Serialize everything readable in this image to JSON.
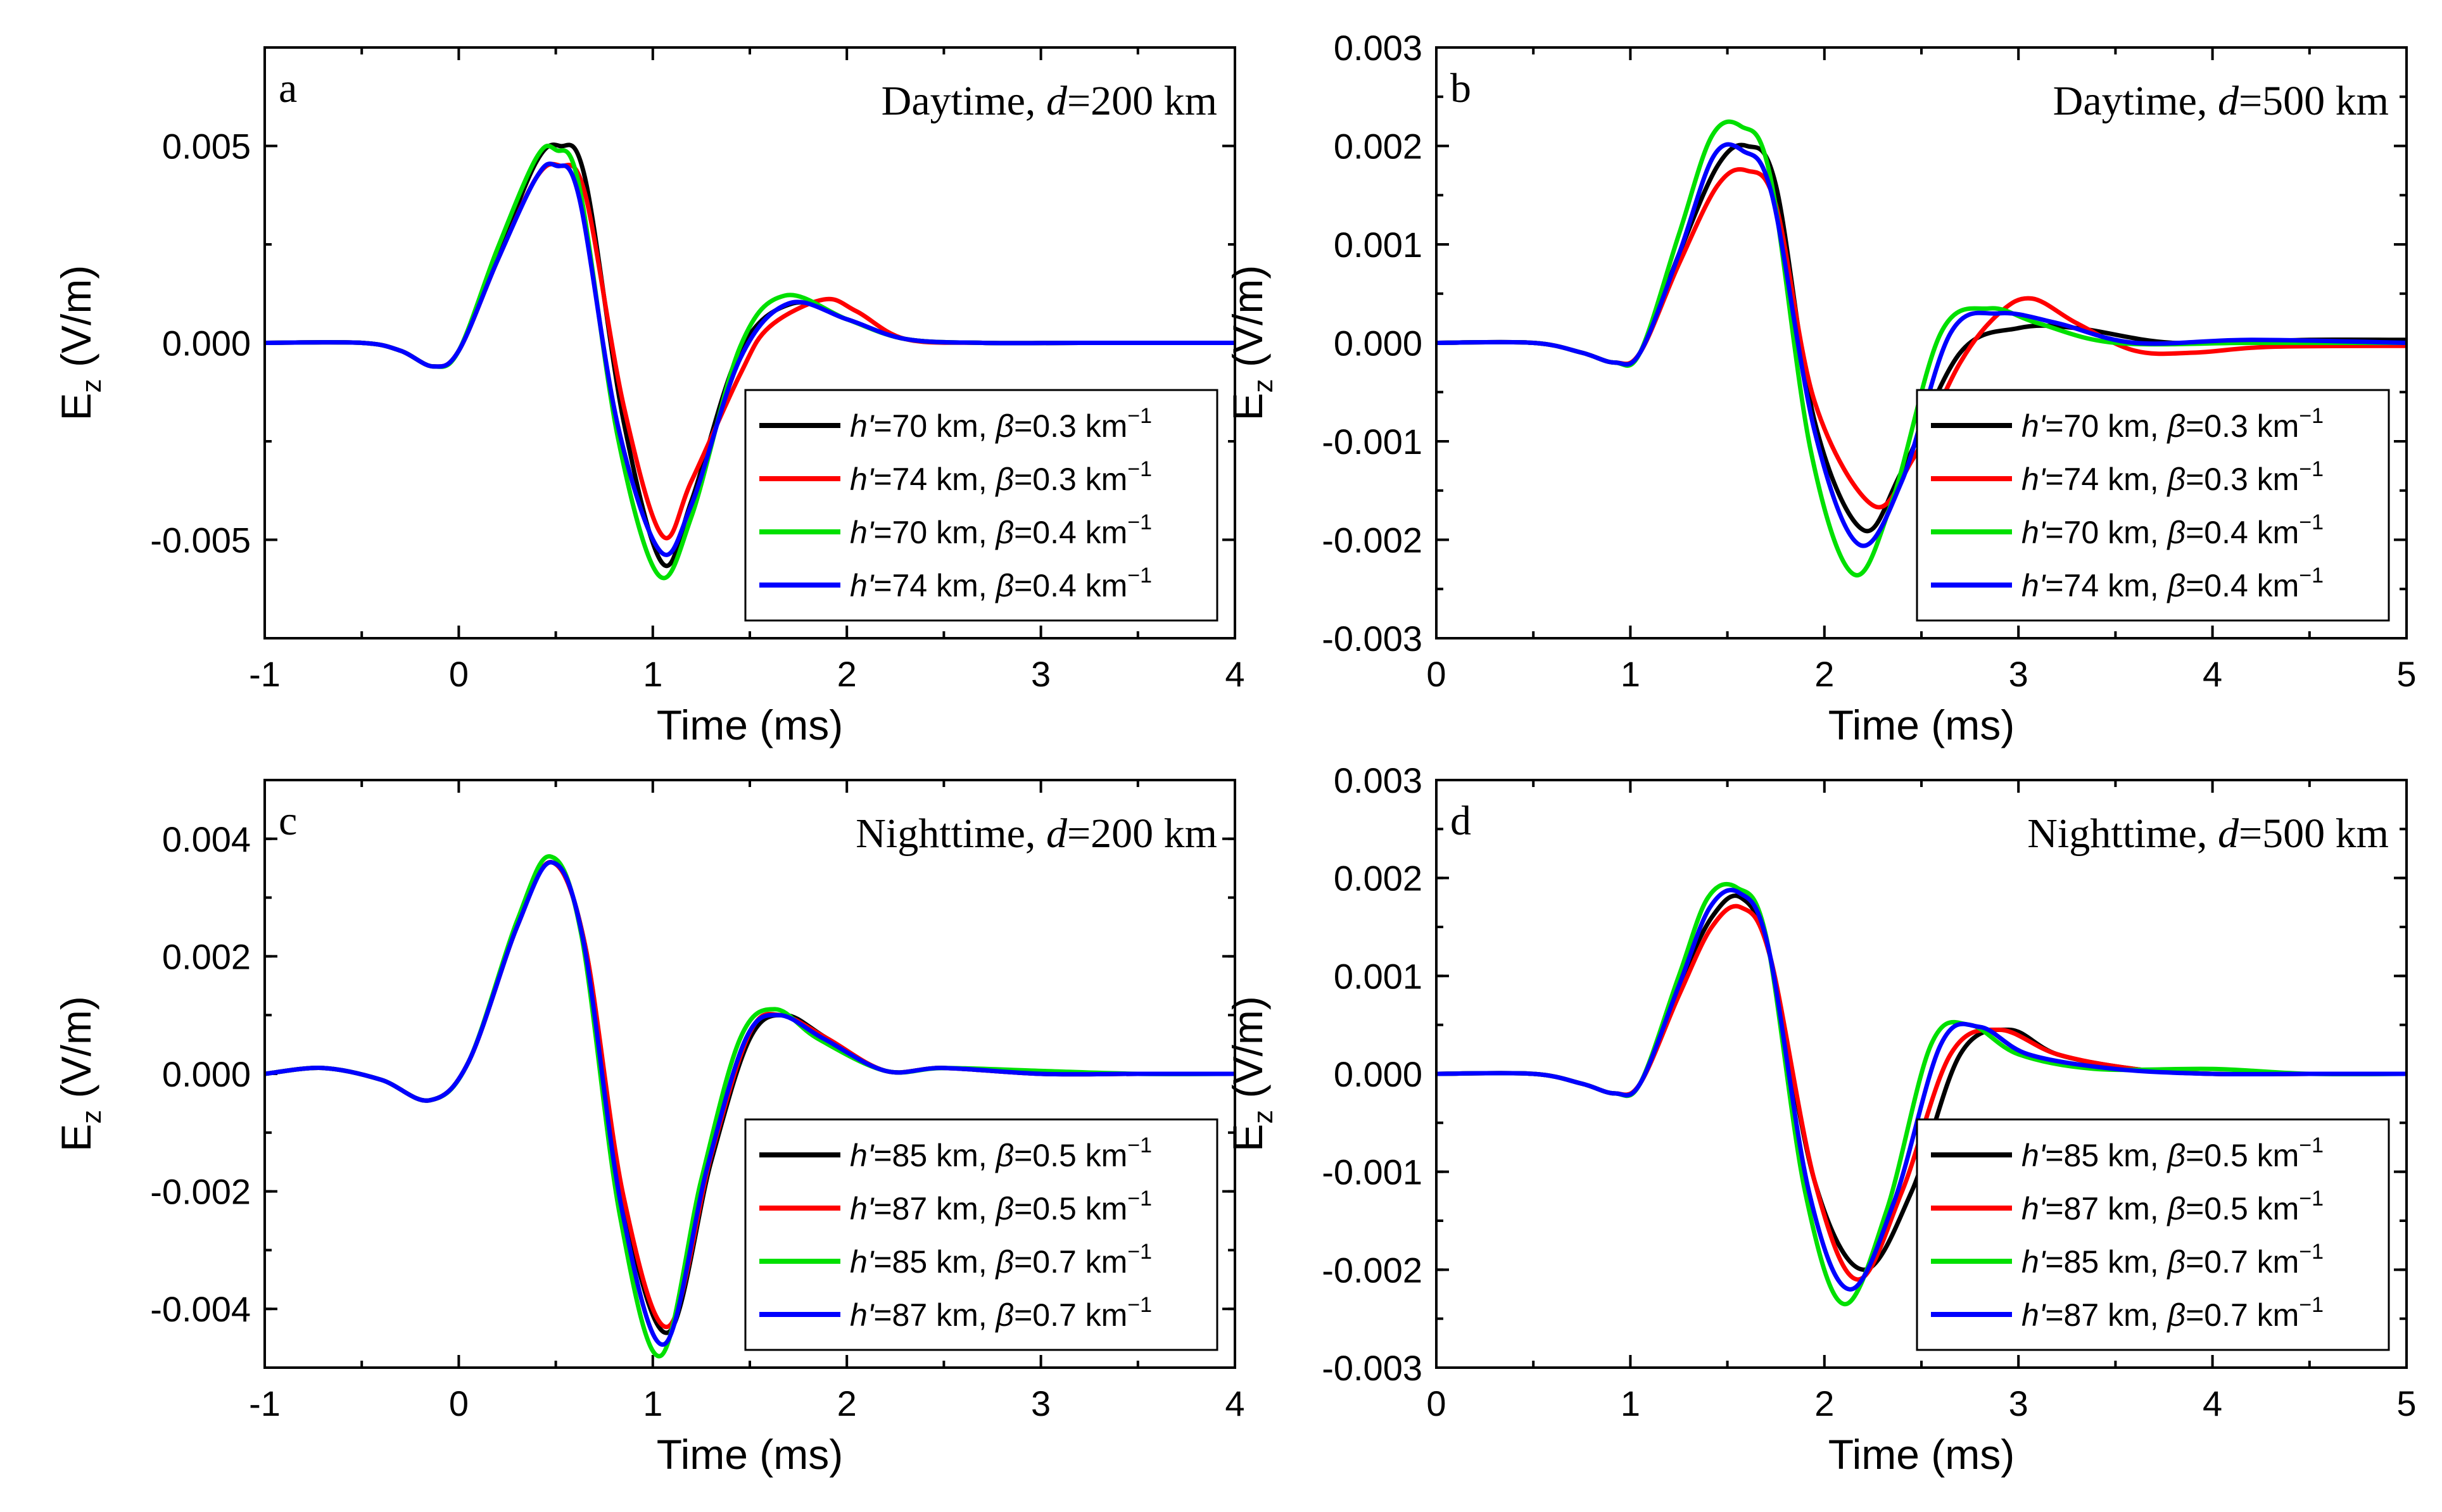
{
  "figure": {
    "series_colors": [
      "#000000",
      "#ff0000",
      "#00e000",
      "#0000ff"
    ]
  },
  "chart_data": [
    {
      "type": "line",
      "panel": "a",
      "title_prefix": "Daytime, ",
      "title_var": "d",
      "title_suffix": "=200 km",
      "xlabel": "Time (ms)",
      "ylabel": "E",
      "ylabel_sub": "z",
      "ylabel_unit": " (V/m)",
      "xlim": [
        -1,
        4
      ],
      "ylim": [
        -0.0075,
        0.0075
      ],
      "xticks": [
        -1,
        0,
        1,
        2,
        3,
        4
      ],
      "xtick_labels": [
        "-1",
        "0",
        "1",
        "2",
        "3",
        "4"
      ],
      "yticks": [
        -0.005,
        0,
        0.005
      ],
      "ytick_labels": [
        "-0.005",
        "0.000",
        "0.005"
      ],
      "legend_position": "lower-right",
      "series": [
        {
          "name_var": "h'",
          "name_mid": "=70 km, ",
          "name_var2": "β",
          "name_tail": "=0.3 km",
          "name_sup": "−1",
          "color": "#000000",
          "x": [
            -1,
            -0.5,
            -0.3,
            -0.13,
            0,
            0.2,
            0.4,
            0.52,
            0.65,
            0.85,
            1.05,
            1.2,
            1.45,
            1.72,
            2.0,
            2.3,
            2.7,
            3.2,
            4
          ],
          "y": [
            0,
            0,
            -0.0002,
            -0.0006,
            -0.0002,
            0.0022,
            0.0046,
            0.005,
            0.0042,
            -0.002,
            -0.0056,
            -0.004,
            -0.0002,
            0.001,
            0.0006,
            0.0001,
            0,
            0,
            0
          ]
        },
        {
          "name_var": "h'",
          "name_mid": "=74 km, ",
          "name_var2": "β",
          "name_tail": "=0.3 km",
          "name_sup": "−1",
          "color": "#ff0000",
          "x": [
            -1,
            -0.5,
            -0.3,
            -0.13,
            0,
            0.2,
            0.4,
            0.52,
            0.65,
            0.85,
            1.05,
            1.2,
            1.45,
            1.6,
            1.88,
            2.05,
            2.3,
            2.7,
            3.2,
            4
          ],
          "y": [
            0,
            0,
            -0.0002,
            -0.0006,
            -0.0002,
            0.0021,
            0.0042,
            0.0045,
            0.0038,
            -0.0016,
            -0.0049,
            -0.0035,
            -0.0008,
            0.0004,
            0.0011,
            0.0008,
            0.0001,
            0,
            0,
            0
          ]
        },
        {
          "name_var": "h'",
          "name_mid": "=70 km, ",
          "name_var2": "β",
          "name_tail": "=0.4 km",
          "name_sup": "−1",
          "color": "#00e000",
          "x": [
            -1,
            -0.5,
            -0.3,
            -0.13,
            0,
            0.2,
            0.4,
            0.5,
            0.62,
            0.82,
            1.03,
            1.2,
            1.45,
            1.68,
            2.0,
            2.3,
            2.7,
            3.2,
            4
          ],
          "y": [
            0,
            0,
            -0.0002,
            -0.0006,
            -0.0002,
            0.0024,
            0.0047,
            0.0049,
            0.004,
            -0.0024,
            -0.0059,
            -0.0044,
            -0.0001,
            0.0012,
            0.0006,
            0.0001,
            0,
            0,
            0
          ]
        },
        {
          "name_var": "h'",
          "name_mid": "=74 km, ",
          "name_var2": "β",
          "name_tail": "=0.4 km",
          "name_sup": "−1",
          "color": "#0000ff",
          "x": [
            -1,
            -0.5,
            -0.3,
            -0.13,
            0,
            0.2,
            0.4,
            0.5,
            0.62,
            0.82,
            1.04,
            1.2,
            1.45,
            1.7,
            2.0,
            2.3,
            2.7,
            3.2,
            4
          ],
          "y": [
            0,
            0,
            -0.0002,
            -0.0006,
            -0.0002,
            0.0021,
            0.0042,
            0.0045,
            0.0037,
            -0.0021,
            -0.0053,
            -0.0041,
            -0.0004,
            0.001,
            0.0006,
            0.0001,
            0,
            0,
            0
          ]
        }
      ]
    },
    {
      "type": "line",
      "panel": "b",
      "title_prefix": "Daytime, ",
      "title_var": "d",
      "title_suffix": "=500 km",
      "xlabel": "Time (ms)",
      "ylabel": "E",
      "ylabel_sub": "z",
      "ylabel_unit": " (V/m)",
      "xlim": [
        0,
        5
      ],
      "ylim": [
        -0.003,
        0.003
      ],
      "xticks": [
        0,
        1,
        2,
        3,
        4,
        5
      ],
      "xtick_labels": [
        "0",
        "1",
        "2",
        "3",
        "4",
        "5"
      ],
      "yticks": [
        -0.003,
        -0.002,
        -0.001,
        0,
        0.001,
        0.002,
        0.003
      ],
      "ytick_labels": [
        "-0.003",
        "-0.002",
        "-0.001",
        "0.000",
        "0.001",
        "0.002",
        "0.003"
      ],
      "legend_position": "lower-right",
      "series": [
        {
          "name_var": "h'",
          "name_mid": "=70 km, ",
          "name_var2": "β",
          "name_tail": "=0.3 km",
          "name_sup": "−1",
          "color": "#000000",
          "x": [
            0,
            0.5,
            0.75,
            0.92,
            1.05,
            1.25,
            1.45,
            1.6,
            1.75,
            1.95,
            2.2,
            2.4,
            2.7,
            3.0,
            3.3,
            3.8,
            4.5,
            5
          ],
          "y": [
            0,
            0,
            -0.0001,
            -0.0002,
            -0.0001,
            0.0009,
            0.0018,
            0.002,
            0.0016,
            -0.0008,
            -0.0019,
            -0.0013,
            -0.0001,
            0.00015,
            0.00015,
            0,
            3e-05,
            3e-05
          ]
        },
        {
          "name_var": "h'",
          "name_mid": "=74 km, ",
          "name_var2": "β",
          "name_tail": "=0.3 km",
          "name_sup": "−1",
          "color": "#ff0000",
          "x": [
            0,
            0.5,
            0.75,
            0.92,
            1.05,
            1.25,
            1.45,
            1.6,
            1.75,
            1.95,
            2.25,
            2.45,
            2.7,
            2.9,
            3.07,
            3.3,
            3.6,
            3.9,
            4.3,
            5
          ],
          "y": [
            0,
            0,
            -0.0001,
            -0.0002,
            -0.0001,
            0.0008,
            0.0016,
            0.00175,
            0.0014,
            -0.0006,
            -0.00165,
            -0.0012,
            -0.0002,
            0.0003,
            0.00045,
            0.0002,
            -8e-05,
            -0.0001,
            -4e-05,
            -3e-05
          ]
        },
        {
          "name_var": "h'",
          "name_mid": "=70 km, ",
          "name_var2": "β",
          "name_tail": "=0.4 km",
          "name_sup": "−1",
          "color": "#00e000",
          "x": [
            0,
            0.5,
            0.75,
            0.92,
            1.05,
            1.25,
            1.42,
            1.57,
            1.72,
            1.93,
            2.15,
            2.35,
            2.6,
            2.85,
            3.1,
            3.5,
            4.2,
            5
          ],
          "y": [
            0,
            0,
            -0.0001,
            -0.0002,
            -0.0001,
            0.0011,
            0.0021,
            0.0022,
            0.0017,
            -0.0011,
            -0.00235,
            -0.0016,
            0.0001,
            0.00035,
            0.0002,
            0,
            0,
            0
          ]
        },
        {
          "name_var": "h'",
          "name_mid": "=74 km, ",
          "name_var2": "β",
          "name_tail": "=0.4 km",
          "name_sup": "−1",
          "color": "#0000ff",
          "x": [
            0,
            0.5,
            0.75,
            0.92,
            1.05,
            1.25,
            1.43,
            1.58,
            1.73,
            1.95,
            2.18,
            2.4,
            2.65,
            2.9,
            3.2,
            3.6,
            4.2,
            5
          ],
          "y": [
            0,
            0,
            -0.0001,
            -0.0002,
            -0.0001,
            0.0009,
            0.0019,
            0.00195,
            0.0015,
            -0.0009,
            -0.00205,
            -0.0014,
            0.0001,
            0.0003,
            0.0002,
            0,
            3e-05,
            0
          ]
        }
      ]
    },
    {
      "type": "line",
      "panel": "c",
      "title_prefix": "Nighttime, ",
      "title_var": "d",
      "title_suffix": "=200 km",
      "xlabel": "Time (ms)",
      "ylabel": "E",
      "ylabel_sub": "z",
      "ylabel_unit": " (V/m)",
      "xlim": [
        -1,
        4
      ],
      "ylim": [
        -0.005,
        0.005
      ],
      "xticks": [
        -1,
        0,
        1,
        2,
        3,
        4
      ],
      "xtick_labels": [
        "-1",
        "0",
        "1",
        "2",
        "3",
        "4"
      ],
      "yticks": [
        -0.004,
        -0.002,
        0,
        0.002,
        0.004
      ],
      "ytick_labels": [
        "-0.004",
        "-0.002",
        "0.000",
        "0.002",
        "0.004"
      ],
      "legend_position": "lower-right",
      "series": [
        {
          "name_var": "h'",
          "name_mid": "=85 km, ",
          "name_var2": "β",
          "name_tail": "=0.5 km",
          "name_sup": "−1",
          "color": "#000000",
          "x": [
            -1,
            -0.7,
            -0.4,
            -0.15,
            0.05,
            0.3,
            0.48,
            0.65,
            0.85,
            1.08,
            1.3,
            1.5,
            1.68,
            1.9,
            2.2,
            2.5,
            3.0,
            3.5,
            4
          ],
          "y": [
            0,
            0.0001,
            -0.0001,
            -0.00045,
            0.0002,
            0.0025,
            0.0036,
            0.0022,
            -0.0022,
            -0.0044,
            -0.0015,
            0.0006,
            0.001,
            0.0006,
            5e-05,
            0.0001,
            0,
            0,
            0
          ]
        },
        {
          "name_var": "h'",
          "name_mid": "=87 km, ",
          "name_var2": "β",
          "name_tail": "=0.5 km",
          "name_sup": "−1",
          "color": "#ff0000",
          "x": [
            -1,
            -0.7,
            -0.4,
            -0.15,
            0.05,
            0.3,
            0.48,
            0.65,
            0.85,
            1.08,
            1.3,
            1.5,
            1.66,
            1.9,
            2.2,
            2.5,
            3.0,
            3.5,
            4
          ],
          "y": [
            0,
            0.0001,
            -0.0001,
            -0.00045,
            0.0002,
            0.0025,
            0.0036,
            0.0022,
            -0.0021,
            -0.0043,
            -0.0014,
            0.0007,
            0.001,
            0.0006,
            5e-05,
            0.0001,
            0,
            0,
            0
          ]
        },
        {
          "name_var": "h'",
          "name_mid": "=85 km, ",
          "name_var2": "β",
          "name_tail": "=0.7 km",
          "name_sup": "−1",
          "color": "#00e000",
          "x": [
            -1,
            -0.7,
            -0.4,
            -0.15,
            0.05,
            0.3,
            0.47,
            0.63,
            0.83,
            1.04,
            1.25,
            1.45,
            1.63,
            1.85,
            2.2,
            2.5,
            3.0,
            3.5,
            4
          ],
          "y": [
            0,
            0.0001,
            -0.0001,
            -0.00045,
            0.0002,
            0.0026,
            0.0037,
            0.0024,
            -0.0024,
            -0.0048,
            -0.0018,
            0.0006,
            0.0011,
            0.0006,
            5e-05,
            0.0001,
            5e-05,
            0,
            0
          ]
        },
        {
          "name_var": "h'",
          "name_mid": "=87 km, ",
          "name_var2": "β",
          "name_tail": "=0.7 km",
          "name_sup": "−1",
          "color": "#0000ff",
          "x": [
            -1,
            -0.7,
            -0.4,
            -0.15,
            0.05,
            0.3,
            0.48,
            0.64,
            0.84,
            1.06,
            1.28,
            1.48,
            1.65,
            1.88,
            2.2,
            2.5,
            3.0,
            3.5,
            4
          ],
          "y": [
            0,
            0.0001,
            -0.0001,
            -0.00045,
            0.0002,
            0.0025,
            0.0036,
            0.0023,
            -0.0023,
            -0.0046,
            -0.0016,
            0.0006,
            0.001,
            0.0006,
            5e-05,
            0.0001,
            0,
            0,
            0
          ]
        }
      ]
    },
    {
      "type": "line",
      "panel": "d",
      "title_prefix": "Nighttime, ",
      "title_var": "d",
      "title_suffix": "=500 km",
      "xlabel": "Time (ms)",
      "ylabel": "E",
      "ylabel_sub": "z",
      "ylabel_unit": " (V/m)",
      "xlim": [
        0,
        5
      ],
      "ylim": [
        -0.003,
        0.003
      ],
      "xticks": [
        0,
        1,
        2,
        3,
        4,
        5
      ],
      "xtick_labels": [
        "0",
        "1",
        "2",
        "3",
        "4",
        "5"
      ],
      "yticks": [
        -0.003,
        -0.002,
        -0.001,
        0,
        0.001,
        0.002,
        0.003
      ],
      "ytick_labels": [
        "-0.003",
        "-0.002",
        "-0.001",
        "0.000",
        "0.001",
        "0.002",
        "0.003"
      ],
      "legend_position": "lower-right",
      "series": [
        {
          "name_var": "h'",
          "name_mid": "=85 km, ",
          "name_var2": "β",
          "name_tail": "=0.5 km",
          "name_sup": "−1",
          "color": "#000000",
          "x": [
            0,
            0.5,
            0.75,
            0.92,
            1.05,
            1.25,
            1.42,
            1.57,
            1.72,
            1.95,
            2.2,
            2.45,
            2.7,
            2.95,
            3.2,
            3.6,
            4.0,
            4.5,
            5
          ],
          "y": [
            0,
            0,
            -0.0001,
            -0.0002,
            -0.0001,
            0.0009,
            0.0016,
            0.0018,
            0.0012,
            -0.0011,
            -0.002,
            -0.0012,
            0.0002,
            0.00045,
            0.0002,
            5e-05,
            0,
            0,
            0
          ]
        },
        {
          "name_var": "h'",
          "name_mid": "=87 km, ",
          "name_var2": "β",
          "name_tail": "=0.5 km",
          "name_sup": "−1",
          "color": "#ff0000",
          "x": [
            0,
            0.5,
            0.75,
            0.92,
            1.05,
            1.25,
            1.42,
            1.57,
            1.72,
            1.95,
            2.17,
            2.4,
            2.65,
            2.9,
            3.2,
            3.6,
            4.0,
            4.5,
            5
          ],
          "y": [
            0,
            0,
            -0.0001,
            -0.0002,
            -0.0001,
            0.0008,
            0.0015,
            0.0017,
            0.0012,
            -0.0011,
            -0.0021,
            -0.0012,
            0.0002,
            0.00045,
            0.0002,
            5e-05,
            0,
            0,
            0
          ]
        },
        {
          "name_var": "h'",
          "name_mid": "=85 km, ",
          "name_var2": "β",
          "name_tail": "=0.7 km",
          "name_sup": "−1",
          "color": "#00e000",
          "x": [
            0,
            0.5,
            0.75,
            0.92,
            1.05,
            1.25,
            1.4,
            1.55,
            1.7,
            1.9,
            2.1,
            2.32,
            2.55,
            2.75,
            3.0,
            3.4,
            4.0,
            4.5,
            5
          ],
          "y": [
            0,
            0,
            -0.0001,
            -0.0002,
            -0.0001,
            0.001,
            0.0018,
            0.0019,
            0.0014,
            -0.0012,
            -0.00235,
            -0.0014,
            0.0003,
            0.0005,
            0.0002,
            5e-05,
            5e-05,
            0,
            0
          ]
        },
        {
          "name_var": "h'",
          "name_mid": "=87 km, ",
          "name_var2": "β",
          "name_tail": "=0.7 km",
          "name_sup": "−1",
          "color": "#0000ff",
          "x": [
            0,
            0.5,
            0.75,
            0.92,
            1.05,
            1.25,
            1.41,
            1.56,
            1.71,
            1.92,
            2.13,
            2.36,
            2.6,
            2.8,
            3.05,
            3.5,
            4.0,
            4.5,
            5
          ],
          "y": [
            0,
            0,
            -0.0001,
            -0.0002,
            -0.0001,
            0.0009,
            0.0017,
            0.00185,
            0.0013,
            -0.0012,
            -0.0022,
            -0.0013,
            0.0003,
            0.00048,
            0.0002,
            5e-05,
            0,
            0,
            0
          ]
        }
      ]
    }
  ]
}
